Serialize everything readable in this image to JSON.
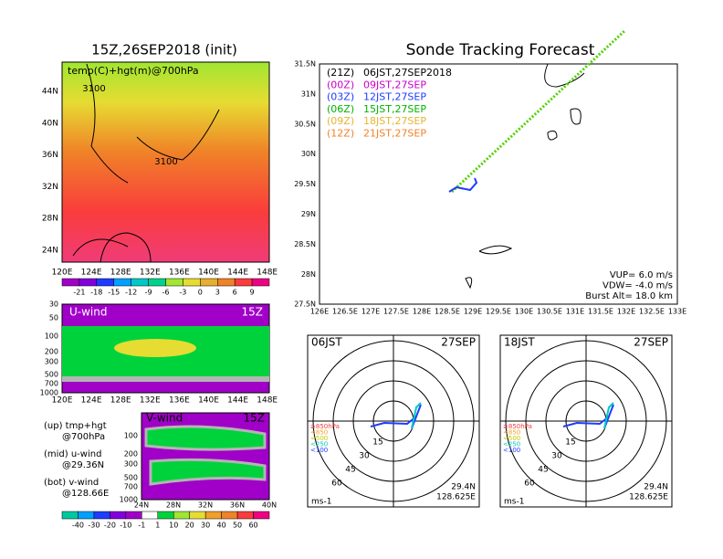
{
  "left_top": {
    "title": "15Z,26SEP2018 (init)",
    "label": "temp(C)+hgt(m)@700hPa",
    "contour_labels": [
      "3100",
      "3100"
    ],
    "lat_labels": [
      "44N",
      "40N",
      "36N",
      "32N",
      "28N",
      "24N"
    ],
    "lon_labels": [
      "120E",
      "124E",
      "128E",
      "132E",
      "136E",
      "140E",
      "144E",
      "148E"
    ],
    "colorbar_labels": [
      "-21",
      "-18",
      "-15",
      "-12",
      "-9",
      "-6",
      "-3",
      "0",
      "3",
      "6",
      "9"
    ]
  },
  "u_wind": {
    "label": "U-wind",
    "time": "15Z",
    "pressure_labels": [
      "30",
      "50",
      "100",
      "200",
      "300",
      "500",
      "700",
      "1000"
    ],
    "lon_labels": [
      "120E",
      "124E",
      "128E",
      "132E",
      "136E",
      "140E",
      "144E",
      "148E"
    ]
  },
  "v_wind": {
    "label": "V-wind",
    "time": "15Z",
    "pressure_labels": [
      "100",
      "200",
      "300",
      "500",
      "700",
      "1000"
    ],
    "lat_labels": [
      "24N",
      "28N",
      "32N",
      "36N",
      "40N"
    ]
  },
  "notes": [
    "(up) tmp+hgt",
    "@700hPa",
    "(mid) u-wind",
    "@29.36N",
    "(bot) v-wind",
    "@128.66E"
  ],
  "wind_colorbar_labels": [
    "-40",
    "-30",
    "-20",
    "-10",
    "-1",
    "1",
    "10",
    "20",
    "30",
    "40",
    "50",
    "60"
  ],
  "track": {
    "title": "Sonde Tracking Forecast",
    "legend": [
      {
        "run": "(21Z)",
        "time": "06JST,27SEP2018",
        "color": "#000000"
      },
      {
        "run": "(00Z)",
        "time": "09JST,27SEP",
        "color": "#c800c8"
      },
      {
        "run": "(03Z)",
        "time": "12JST,27SEP",
        "color": "#1e3cff"
      },
      {
        "run": "(06Z)",
        "time": "15JST,27SEP",
        "color": "#00b400"
      },
      {
        "run": "(09Z)",
        "time": "18JST,27SEP",
        "color": "#e6b432"
      },
      {
        "run": "(12Z)",
        "time": "21JST,27SEP",
        "color": "#f08228"
      }
    ],
    "lat_labels": [
      "31.5N",
      "31N",
      "30.5N",
      "30N",
      "29.5N",
      "29N",
      "28.5N",
      "28N",
      "27.5N"
    ],
    "lon_labels": [
      "126E",
      "126.5E",
      "127E",
      "127.5E",
      "128E",
      "128.5E",
      "129E",
      "129.5E",
      "130E",
      "130.5E",
      "131E",
      "131.5E",
      "132E",
      "132.5E",
      "133E"
    ],
    "params": [
      "VUP= 6.0 m/s",
      "VDW= -4.0 m/s",
      "Burst Alt= 18.0 km"
    ]
  },
  "hodographs": [
    {
      "time": "06JST",
      "date": "27SEP",
      "lat": "29.4N",
      "lon": "128.625E",
      "unit": "ms-1",
      "rings": [
        "15",
        "30",
        "45",
        "60"
      ]
    },
    {
      "time": "18JST",
      "date": "27SEP",
      "lat": "29.4N",
      "lon": "128.625E",
      "unit": "ms-1",
      "rings": [
        "15",
        "30",
        "45",
        "60"
      ]
    }
  ],
  "pressure_legend": [
    {
      "label": "≥850hPa",
      "color": "#f03c3c"
    },
    {
      "label": "<850",
      "color": "#f0a028"
    },
    {
      "label": "<500",
      "color": "#c8c800"
    },
    {
      "label": "<250",
      "color": "#00c8c8"
    },
    {
      "label": "<100",
      "color": "#1e3cff"
    }
  ]
}
